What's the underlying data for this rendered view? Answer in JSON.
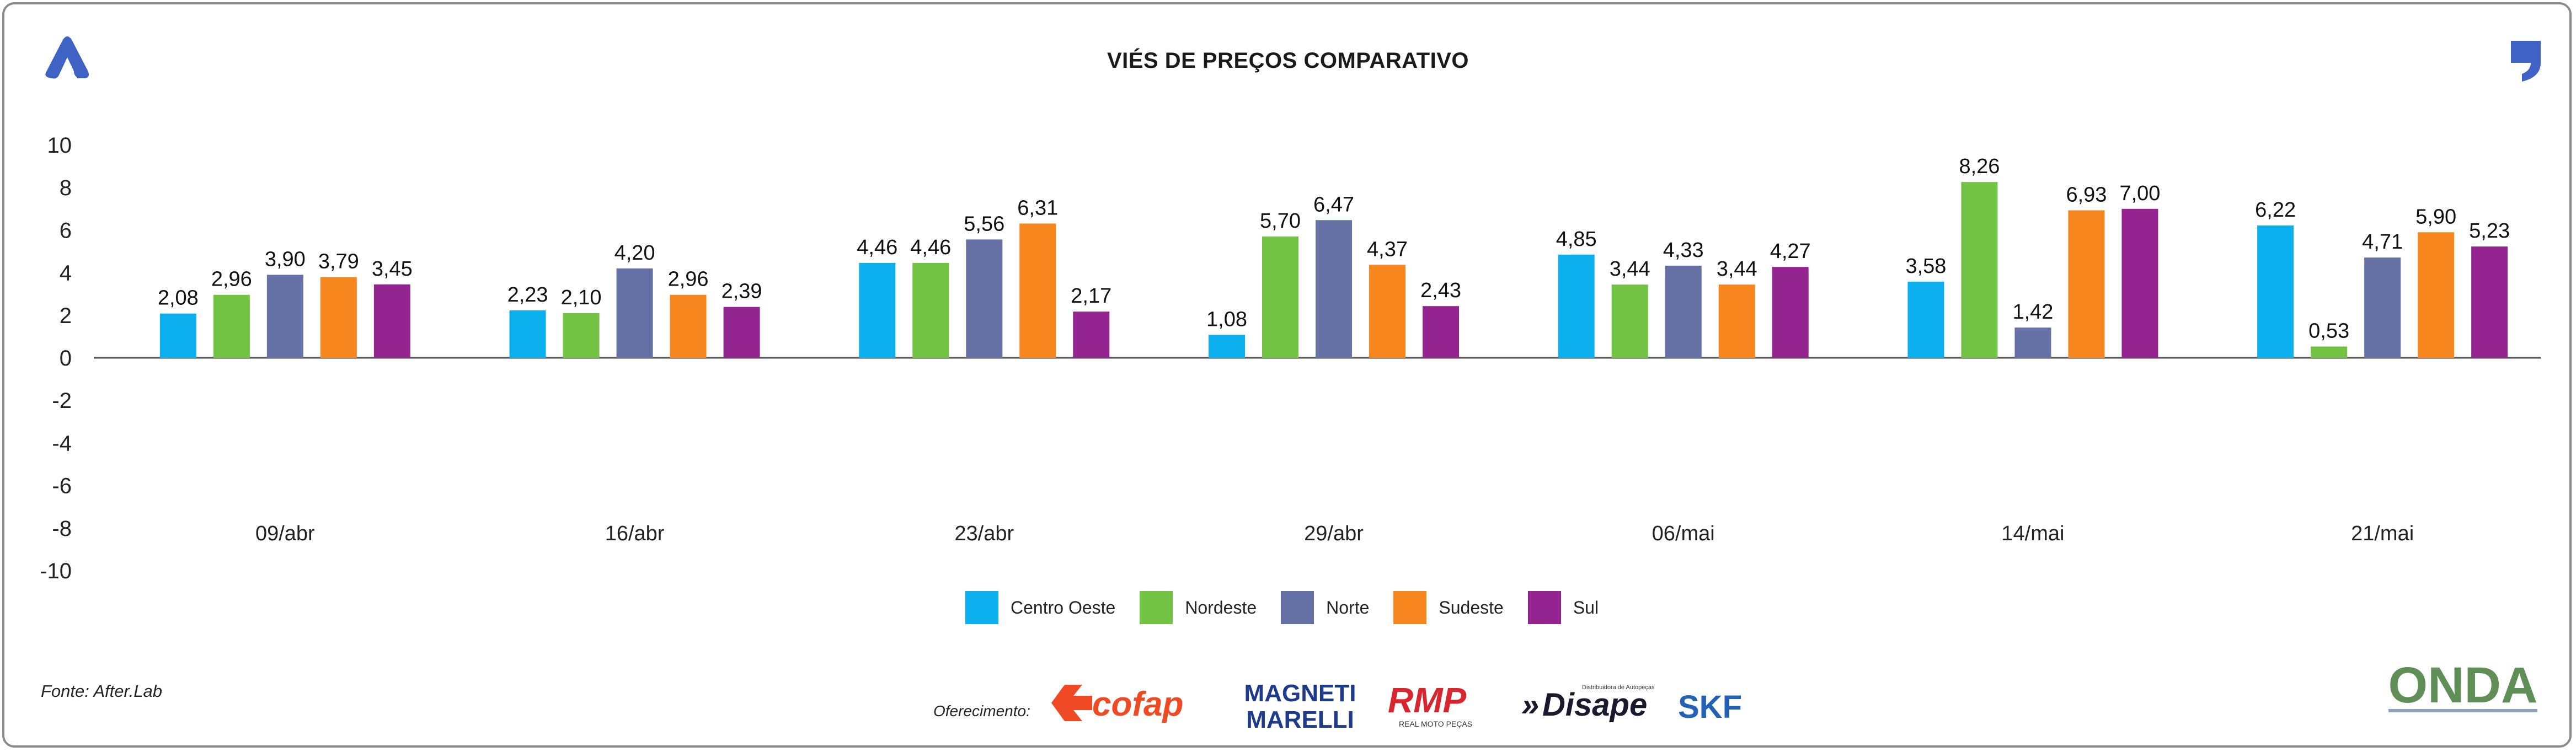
{
  "title": "VIÉS DE PREÇOS COMPARATIVO",
  "source_text": "Fonte: After.Lab",
  "sponsor_label": "Oferecimento:",
  "sponsors": [
    "cofap",
    "MAGNETI MARELLI",
    "RMP",
    "Disape",
    "SKF"
  ],
  "sponsor_subtexts": {
    "rmp": "REAL MOTO PEÇAS",
    "disape": "Distribuidora de Autopeças"
  },
  "footer_logo": "ONDA",
  "colors": {
    "centro_oeste": "#0db0ef",
    "nordeste": "#72c244",
    "norte": "#6570a4",
    "sudeste": "#f7861e",
    "sul": "#932490",
    "brand_blue": "#3f63c4",
    "onda_green": "#5f8f57"
  },
  "chart_data": {
    "type": "bar",
    "title": "VIÉS DE PREÇOS COMPARATIVO",
    "xlabel": "",
    "ylabel": "",
    "ylim": [
      -10,
      10
    ],
    "yticks": [
      10,
      8,
      6,
      4,
      2,
      0,
      -2,
      -4,
      -6,
      -8,
      -10
    ],
    "grid": false,
    "legend_position": "bottom-center",
    "categories": [
      "09/abr",
      "16/abr",
      "23/abr",
      "29/abr",
      "06/mai",
      "14/mai",
      "21/mai"
    ],
    "series": [
      {
        "name": "Centro Oeste",
        "color": "#0db0ef",
        "values": [
          2.08,
          2.23,
          4.46,
          1.08,
          4.85,
          3.58,
          6.22
        ]
      },
      {
        "name": "Nordeste",
        "color": "#72c244",
        "values": [
          2.96,
          2.1,
          4.46,
          5.7,
          3.44,
          8.26,
          0.53
        ]
      },
      {
        "name": "Norte",
        "color": "#6570a4",
        "values": [
          3.9,
          4.2,
          5.56,
          6.47,
          4.33,
          1.42,
          4.71
        ]
      },
      {
        "name": "Sudeste",
        "color": "#f7861e",
        "values": [
          3.79,
          2.96,
          6.31,
          4.37,
          3.44,
          6.93,
          5.9
        ]
      },
      {
        "name": "Sul",
        "color": "#932490",
        "values": [
          3.45,
          2.39,
          2.17,
          2.43,
          4.27,
          7.0,
          5.23
        ]
      }
    ],
    "data_labels": [
      [
        "2,08",
        "2,96",
        "3,90",
        "3,79",
        "3,45"
      ],
      [
        "2,23",
        "2,10",
        "4,20",
        "2,96",
        "2,39"
      ],
      [
        "4,46",
        "4,46",
        "5,56",
        "6,31",
        "2,17"
      ],
      [
        "1,08",
        "5,70",
        "6,47",
        "4,37",
        "2,43"
      ],
      [
        "4,85",
        "3,44",
        "4,33",
        "3,44",
        "4,27"
      ],
      [
        "3,58",
        "8,26",
        "1,42",
        "6,93",
        "7,00"
      ],
      [
        "6,22",
        "0,53",
        "4,71",
        "5,90",
        "5,23"
      ]
    ]
  }
}
